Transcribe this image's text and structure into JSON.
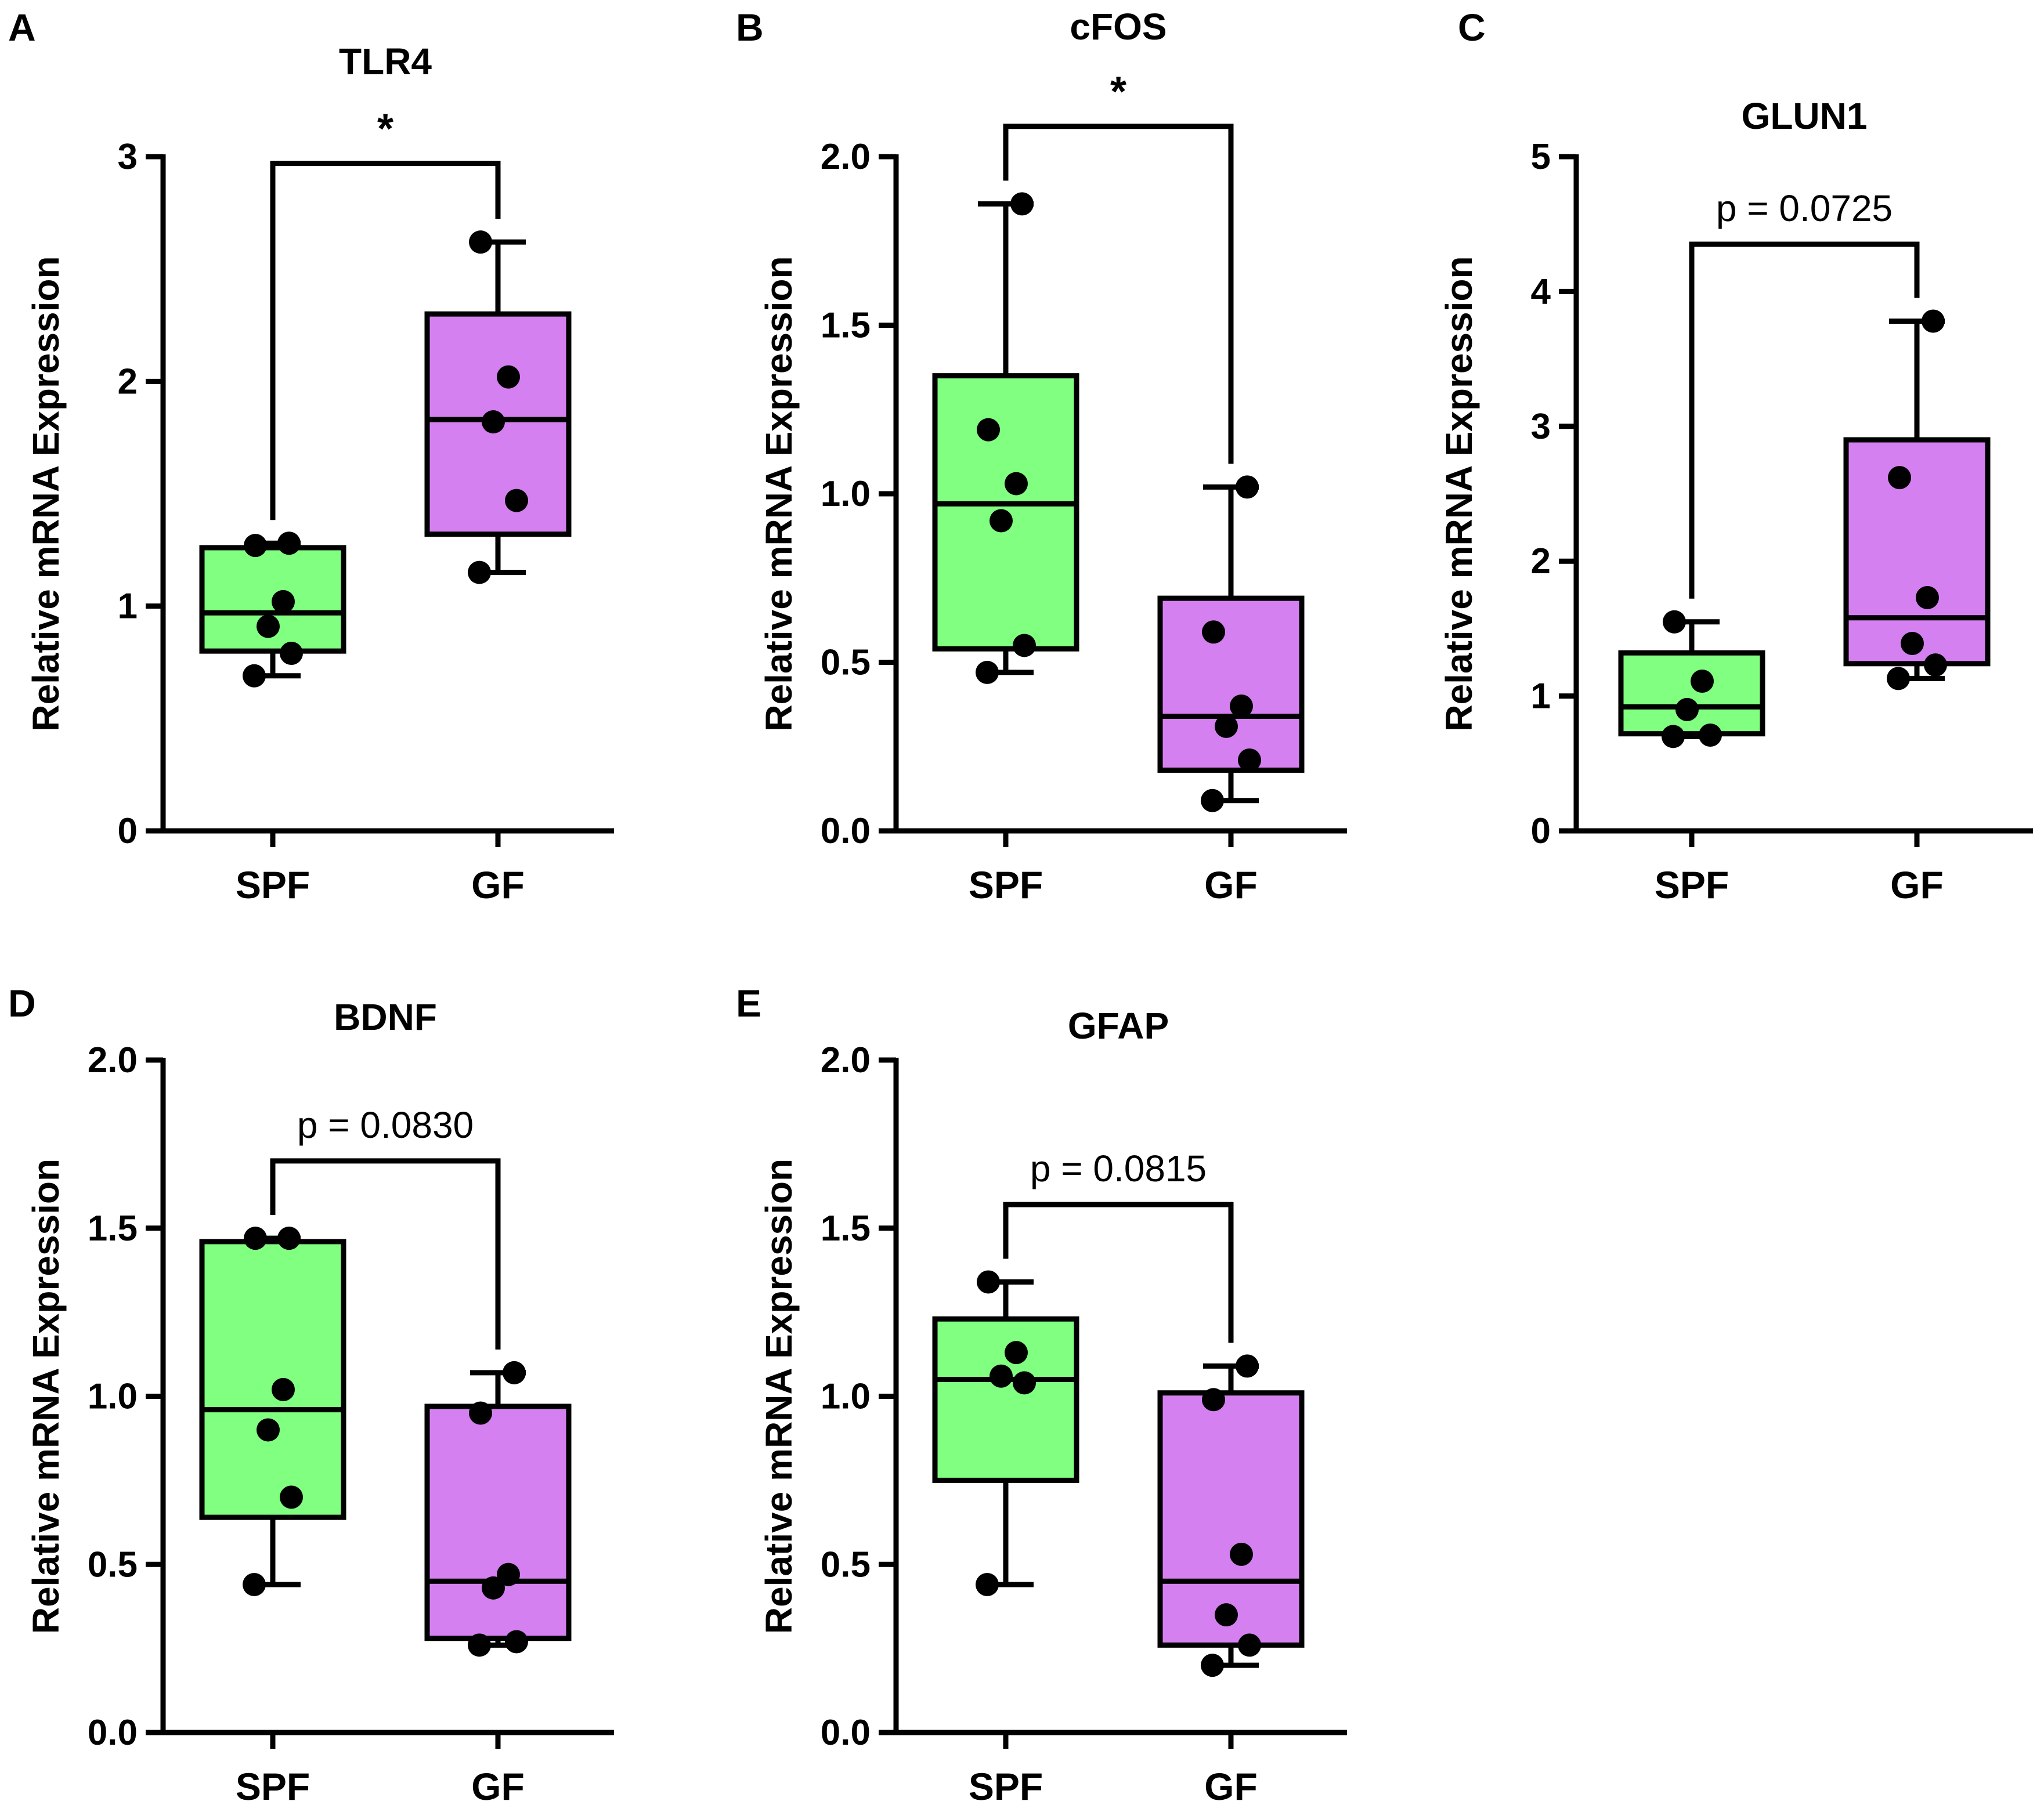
{
  "colors": {
    "spf": "#80ff80",
    "gf": "#d580f0",
    "stroke": "#000000",
    "dot": "#000000"
  },
  "chart_data": [
    {
      "panel": "A",
      "type": "box",
      "title": "TLR4",
      "ylabel": "Relative mRNA Expression",
      "ylim": [
        0,
        3
      ],
      "yticks": [
        "0",
        "1",
        "2",
        "3"
      ],
      "categories": [
        "SPF",
        "GF"
      ],
      "series": [
        {
          "name": "SPF",
          "whisker": [
            0.69,
            1.28
          ],
          "q1": 0.8,
          "median": 0.97,
          "q3": 1.26,
          "points": [
            0.69,
            0.79,
            0.91,
            1.02,
            1.27,
            1.28
          ]
        },
        {
          "name": "GF",
          "whisker": [
            1.15,
            2.62
          ],
          "q1": 1.32,
          "median": 1.83,
          "q3": 2.3,
          "points": [
            1.15,
            1.47,
            1.82,
            2.02,
            2.62
          ]
        }
      ],
      "significance": "*",
      "bracket_level": 2.97
    },
    {
      "panel": "B",
      "type": "box",
      "title": "cFOS",
      "ylabel": "Relative mRNA Expression",
      "ylim": [
        0,
        2
      ],
      "yticks": [
        "0.0",
        "0.5",
        "1.0",
        "1.5",
        "2.0"
      ],
      "categories": [
        "SPF",
        "GF"
      ],
      "series": [
        {
          "name": "SPF",
          "whisker": [
            0.47,
            1.86
          ],
          "q1": 0.54,
          "median": 0.97,
          "q3": 1.35,
          "points": [
            0.47,
            0.55,
            0.92,
            1.03,
            1.19,
            1.86
          ]
        },
        {
          "name": "GF",
          "whisker": [
            0.09,
            1.02
          ],
          "q1": 0.18,
          "median": 0.34,
          "q3": 0.69,
          "points": [
            0.09,
            0.21,
            0.31,
            0.37,
            0.59,
            1.02
          ]
        }
      ],
      "significance": "*",
      "bracket_level": 2.09
    },
    {
      "panel": "C",
      "type": "box",
      "title": "GLUN1",
      "ylabel": "Relative mRNA Expression",
      "ylim": [
        0,
        5
      ],
      "yticks": [
        "0",
        "1",
        "2",
        "3",
        "4",
        "5"
      ],
      "categories": [
        "SPF",
        "GF"
      ],
      "series": [
        {
          "name": "SPF",
          "whisker": [
            0.7,
            1.55
          ],
          "q1": 0.72,
          "median": 0.92,
          "q3": 1.32,
          "points": [
            0.7,
            0.71,
            0.9,
            1.11,
            1.55
          ]
        },
        {
          "name": "GF",
          "whisker": [
            1.13,
            3.78
          ],
          "q1": 1.24,
          "median": 1.58,
          "q3": 2.9,
          "points": [
            1.13,
            1.23,
            1.39,
            1.73,
            2.62,
            3.78
          ]
        }
      ],
      "significance": "p = 0.0725",
      "bracket_level": 4.35
    },
    {
      "panel": "D",
      "type": "box",
      "title": "BDNF",
      "ylabel": "Relative mRNA Expression",
      "ylim": [
        0,
        2
      ],
      "yticks": [
        "0.0",
        "0.5",
        "1.0",
        "1.5",
        "2.0"
      ],
      "categories": [
        "SPF",
        "GF"
      ],
      "series": [
        {
          "name": "SPF",
          "whisker": [
            0.44,
            1.47
          ],
          "q1": 0.64,
          "median": 0.96,
          "q3": 1.46,
          "points": [
            0.44,
            0.7,
            0.9,
            1.02,
            1.47,
            1.47
          ]
        },
        {
          "name": "GF",
          "whisker": [
            0.26,
            1.07
          ],
          "q1": 0.28,
          "median": 0.45,
          "q3": 0.97,
          "points": [
            0.26,
            0.27,
            0.43,
            0.47,
            0.95,
            1.07
          ]
        }
      ],
      "significance": "p = 0.0830",
      "bracket_level": 1.7
    },
    {
      "panel": "E",
      "type": "box",
      "title": "GFAP",
      "ylabel": "Relative mRNA Expression",
      "ylim": [
        0,
        2
      ],
      "yticks": [
        "0.0",
        "0.5",
        "1.0",
        "1.5",
        "2.0"
      ],
      "categories": [
        "SPF",
        "GF"
      ],
      "series": [
        {
          "name": "SPF",
          "whisker": [
            0.44,
            1.34
          ],
          "q1": 0.75,
          "median": 1.05,
          "q3": 1.23,
          "points": [
            0.44,
            1.04,
            1.06,
            1.13,
            1.34
          ]
        },
        {
          "name": "GF",
          "whisker": [
            0.2,
            1.09
          ],
          "q1": 0.26,
          "median": 0.45,
          "q3": 1.01,
          "points": [
            0.2,
            0.26,
            0.35,
            0.53,
            0.99,
            1.09
          ]
        }
      ],
      "significance": "p = 0.0815",
      "bracket_level": 1.57
    }
  ]
}
